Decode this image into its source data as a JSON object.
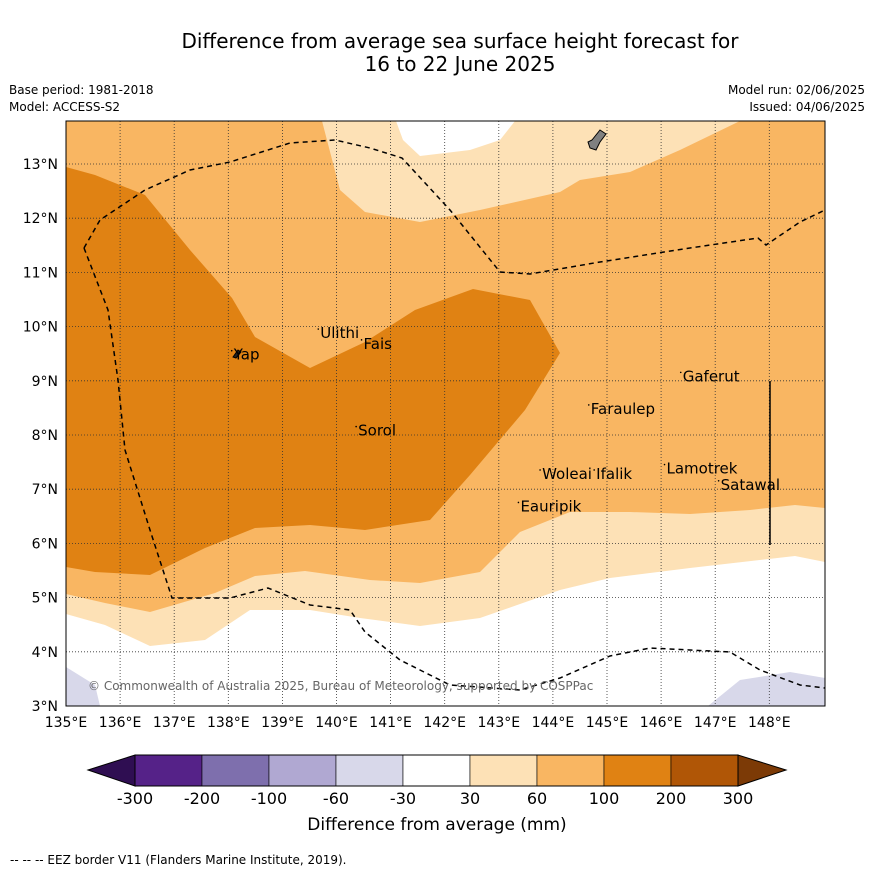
{
  "header": {
    "title_line1": "Difference from average sea surface height forecast for",
    "title_line2": "16 to 22 June 2025",
    "base_period": "Base period: 1981-2018",
    "model": "Model: ACCESS-S2",
    "model_run": "Model run: 02/06/2025",
    "issued": "Issued: 04/06/2025"
  },
  "map": {
    "lon_ticks": [
      "135°E",
      "136°E",
      "137°E",
      "138°E",
      "139°E",
      "140°E",
      "141°E",
      "142°E",
      "143°E",
      "144°E",
      "145°E",
      "146°E",
      "147°E",
      "148°E"
    ],
    "lat_ticks": [
      "3°N",
      "4°N",
      "5°N",
      "6°N",
      "7°N",
      "8°N",
      "9°N",
      "10°N",
      "11°N",
      "12°N",
      "13°N"
    ],
    "extent": {
      "lon": [
        135,
        149
      ],
      "lat": [
        3,
        13.8
      ]
    },
    "places": [
      {
        "name": "Ulithi",
        "lon": 139.7,
        "lat": 9.9
      },
      {
        "name": "Fais",
        "lon": 140.5,
        "lat": 9.7
      },
      {
        "name": "Yap",
        "lon": 138.1,
        "lat": 9.5
      },
      {
        "name": "Gaferut",
        "lon": 146.4,
        "lat": 9.1
      },
      {
        "name": "Faraulep",
        "lon": 144.7,
        "lat": 8.5
      },
      {
        "name": "Sorol",
        "lon": 140.4,
        "lat": 8.1
      },
      {
        "name": "Woleai",
        "lon": 143.8,
        "lat": 7.3
      },
      {
        "name": "Ifalik",
        "lon": 144.8,
        "lat": 7.3
      },
      {
        "name": "Lamotrek",
        "lon": 146.1,
        "lat": 7.4
      },
      {
        "name": "Satawal",
        "lon": 147.1,
        "lat": 7.1
      },
      {
        "name": "Eauripik",
        "lon": 143.4,
        "lat": 6.7
      }
    ],
    "copyright": "© Commonwealth of Australia 2025, Bureau of Meteorology, supported by COSPPac"
  },
  "colorbar": {
    "labels": [
      "-300",
      "-200",
      "-100",
      "-60",
      "-30",
      "30",
      "60",
      "100",
      "200",
      "300"
    ],
    "colors": [
      "#552288",
      "#7e6fad",
      "#b0a8d2",
      "#d8d8ea",
      "#ffffff",
      "#fde1b6",
      "#f9b662",
      "#e08213",
      "#b05606"
    ],
    "under_color": "#2f0e52",
    "over_color": "#7c3a06",
    "title": "Difference from average (mm)"
  },
  "footer": {
    "legend": "--  --  -- EEZ border V11 (Flanders Marine Institute, 2019)."
  }
}
